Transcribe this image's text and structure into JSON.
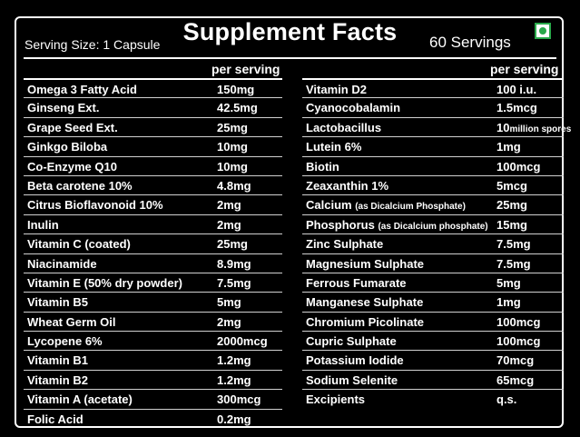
{
  "header": {
    "title": "Supplement Facts",
    "serving_size": "Serving Size: 1 Capsule",
    "servings": "60 Servings",
    "per_serving": "per serving"
  },
  "left_rows": [
    {
      "name": "Omega 3 Fatty Acid",
      "value": "150mg"
    },
    {
      "name": "Ginseng Ext.",
      "value": "42.5mg"
    },
    {
      "name": "Grape Seed Ext.",
      "value": "25mg"
    },
    {
      "name": "Ginkgo Biloba",
      "value": "10mg"
    },
    {
      "name": "Co-Enzyme Q10",
      "value": "10mg"
    },
    {
      "name": "Beta carotene 10%",
      "value": "4.8mg"
    },
    {
      "name": "Citrus Bioflavonoid 10%",
      "value": "2mg"
    },
    {
      "name": "Inulin",
      "value": "2mg"
    },
    {
      "name": "Vitamin C (coated)",
      "value": "25mg"
    },
    {
      "name": "Niacinamide",
      "value": "8.9mg"
    },
    {
      "name": "Vitamin E (50% dry powder)",
      "value": "7.5mg"
    },
    {
      "name": "Vitamin B5",
      "value": "5mg"
    },
    {
      "name": "Wheat Germ Oil",
      "value": "2mg"
    },
    {
      "name": "Lycopene 6%",
      "value": "2000mcg"
    },
    {
      "name": "Vitamin B1",
      "value": "1.2mg"
    },
    {
      "name": "Vitamin B2",
      "value": "1.2mg"
    },
    {
      "name": "Vitamin A (acetate)",
      "value": "300mcg"
    },
    {
      "name": "Folic Acid",
      "value": "0.2mg"
    }
  ],
  "right_rows": [
    {
      "name": "Vitamin D2",
      "value": "100 i.u."
    },
    {
      "name": "Cyanocobalamin",
      "value": "1.5mcg"
    },
    {
      "name": "Lactobacillus",
      "value": "10",
      "value_note": "million spores"
    },
    {
      "name": "Lutein 6%",
      "value": "1mg"
    },
    {
      "name": "Biotin",
      "value": "100mcg"
    },
    {
      "name": "Zeaxanthin 1%",
      "value": "5mcg"
    },
    {
      "name": "Calcium",
      "name_note": "(as Dicalcium Phosphate)",
      "value": "25mg"
    },
    {
      "name": "Phosphorus",
      "name_note": "(as Dicalcium phosphate)",
      "value": "15mg"
    },
    {
      "name": "Zinc Sulphate",
      "value": "7.5mg"
    },
    {
      "name": "Magnesium Sulphate",
      "value": "7.5mg"
    },
    {
      "name": "Ferrous Fumarate",
      "value": "5mg"
    },
    {
      "name": "Manganese Sulphate",
      "value": "1mg"
    },
    {
      "name": "Chromium Picolinate",
      "value": "100mcg"
    },
    {
      "name": "Cupric Sulphate",
      "value": "100mcg"
    },
    {
      "name": "Potassium Iodide",
      "value": "70mcg"
    },
    {
      "name": "Sodium Selenite",
      "value": "65mcg"
    },
    {
      "name": "Excipients",
      "value": "q.s."
    }
  ],
  "colors": {
    "background": "#000000",
    "text": "#ffffff",
    "veg_mark": "#29a84a"
  },
  "icons": {
    "veg_mark": "veg-symbol-icon"
  }
}
